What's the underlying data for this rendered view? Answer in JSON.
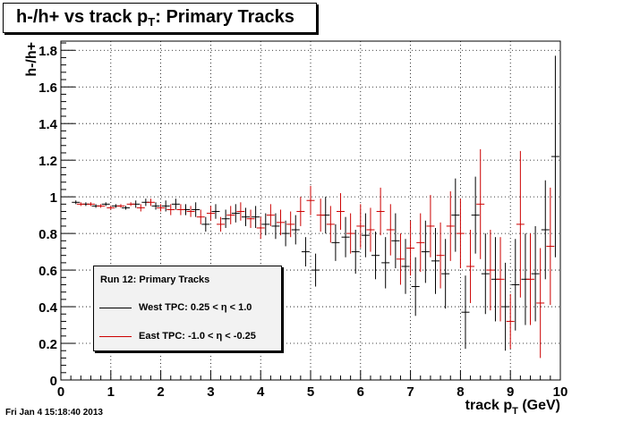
{
  "title": {
    "prefix": "h-/h+ vs track p",
    "sub": "T",
    "suffix": ": Primary Tracks"
  },
  "footer_timestamp": "Fri Jan  4 15:18:40 2013",
  "colors": {
    "series_west": "#000000",
    "series_east": "#cc0000",
    "legend_bg": "#f2f2f2",
    "grid": "#000000"
  },
  "legend": {
    "header": "Run 12: Primary Tracks",
    "entries": [
      {
        "prefix": "West TPC: 0.25 < ",
        "symbol": "η",
        "suffix": " < 1.0"
      },
      {
        "prefix": "East TPC: -1.0 < ",
        "symbol": "η",
        "suffix": " < -0.25"
      }
    ]
  },
  "chart_data": {
    "type": "scatter",
    "title": "h-/h+ vs track pT: Primary Tracks",
    "xlabel": {
      "main": "track p",
      "sub": "T",
      "unit": " (GeV)"
    },
    "ylabel": "h-/h+",
    "xlim": [
      0,
      10
    ],
    "ylim": [
      0,
      1.85
    ],
    "grid": true,
    "xticks": [
      "0",
      "1",
      "2",
      "3",
      "4",
      "5",
      "6",
      "7",
      "8",
      "9",
      "10"
    ],
    "yticks": [
      "0",
      "0.2",
      "0.4",
      "0.6",
      "0.8",
      "1",
      "1.2",
      "1.4",
      "1.6",
      "1.8"
    ],
    "legend_position": "lower-left",
    "series": [
      {
        "name": "West TPC: 0.25 < η < 1.0",
        "x": [
          0.3,
          0.5,
          0.7,
          0.9,
          1.1,
          1.3,
          1.5,
          1.7,
          1.9,
          2.1,
          2.3,
          2.5,
          2.7,
          2.9,
          3.1,
          3.3,
          3.5,
          3.7,
          3.9,
          4.1,
          4.3,
          4.5,
          4.7,
          4.9,
          5.1,
          5.3,
          5.5,
          5.7,
          5.9,
          6.1,
          6.3,
          6.5,
          6.7,
          6.9,
          7.1,
          7.3,
          7.5,
          7.7,
          7.9,
          8.1,
          8.3,
          8.5,
          8.7,
          8.9,
          9.1,
          9.3,
          9.5,
          9.7,
          9.9
        ],
        "y": [
          0.97,
          0.96,
          0.95,
          0.96,
          0.95,
          0.94,
          0.96,
          0.97,
          0.95,
          0.95,
          0.96,
          0.93,
          0.93,
          0.85,
          0.92,
          0.88,
          0.91,
          0.89,
          0.89,
          0.85,
          0.84,
          0.8,
          0.82,
          0.7,
          0.6,
          0.9,
          0.75,
          0.78,
          0.7,
          0.79,
          0.68,
          0.64,
          0.76,
          0.62,
          0.51,
          0.7,
          0.65,
          0.58,
          0.9,
          0.37,
          0.9,
          0.58,
          0.55,
          0.4,
          0.52,
          0.55,
          0.58,
          0.82,
          1.22
        ],
        "err": [
          0.01,
          0.01,
          0.01,
          0.01,
          0.01,
          0.01,
          0.02,
          0.02,
          0.02,
          0.03,
          0.03,
          0.03,
          0.04,
          0.04,
          0.04,
          0.05,
          0.05,
          0.05,
          0.06,
          0.06,
          0.07,
          0.07,
          0.08,
          0.08,
          0.09,
          0.1,
          0.1,
          0.11,
          0.12,
          0.12,
          0.13,
          0.14,
          0.15,
          0.15,
          0.16,
          0.17,
          0.18,
          0.19,
          0.2,
          0.2,
          0.21,
          0.22,
          0.23,
          0.24,
          0.25,
          0.25,
          0.26,
          0.27,
          0.55
        ]
      },
      {
        "name": "East TPC: -1.0 < η < -0.25",
        "x": [
          0.4,
          0.6,
          0.8,
          1.0,
          1.2,
          1.4,
          1.6,
          1.8,
          2.0,
          2.2,
          2.4,
          2.6,
          2.8,
          3.0,
          3.2,
          3.4,
          3.6,
          3.8,
          4.0,
          4.2,
          4.4,
          4.6,
          4.8,
          5.0,
          5.2,
          5.4,
          5.6,
          5.8,
          6.0,
          6.2,
          6.4,
          6.6,
          6.8,
          7.0,
          7.2,
          7.4,
          7.6,
          7.8,
          8.0,
          8.2,
          8.4,
          8.6,
          8.8,
          9.0,
          9.2,
          9.4,
          9.6,
          9.8
        ],
        "y": [
          0.96,
          0.96,
          0.95,
          0.94,
          0.95,
          0.96,
          0.94,
          0.97,
          0.94,
          0.93,
          0.93,
          0.92,
          0.89,
          0.91,
          0.85,
          0.9,
          0.92,
          0.88,
          0.83,
          0.9,
          0.86,
          0.85,
          0.92,
          0.98,
          0.9,
          0.85,
          0.92,
          0.8,
          0.84,
          0.82,
          0.92,
          0.82,
          0.66,
          0.72,
          0.75,
          0.84,
          0.68,
          0.84,
          0.8,
          0.62,
          0.96,
          0.6,
          0.55,
          0.32,
          0.85,
          0.55,
          0.42,
          0.73
        ],
        "err": [
          0.01,
          0.01,
          0.01,
          0.01,
          0.01,
          0.01,
          0.02,
          0.02,
          0.02,
          0.03,
          0.03,
          0.03,
          0.04,
          0.04,
          0.04,
          0.05,
          0.05,
          0.05,
          0.06,
          0.06,
          0.07,
          0.07,
          0.08,
          0.08,
          0.09,
          0.1,
          0.1,
          0.11,
          0.12,
          0.12,
          0.13,
          0.14,
          0.14,
          0.15,
          0.16,
          0.17,
          0.18,
          0.19,
          0.19,
          0.2,
          0.3,
          0.22,
          0.23,
          0.15,
          0.4,
          0.25,
          0.3,
          0.32
        ]
      }
    ]
  }
}
